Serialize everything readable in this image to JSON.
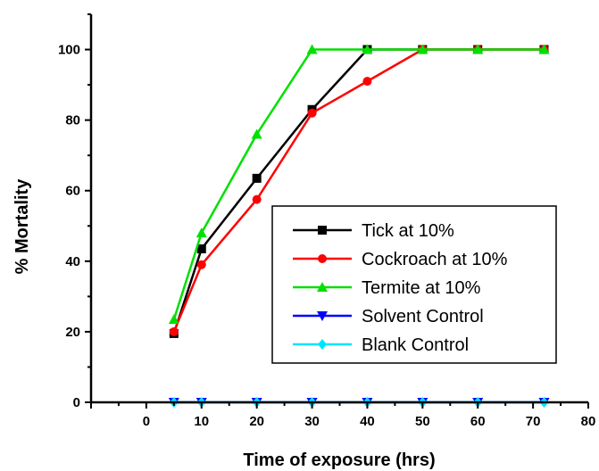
{
  "chart_data": {
    "type": "line",
    "title": "",
    "xlabel": "Time of exposure (hrs)",
    "ylabel": "% Mortality",
    "xlim": [
      -10,
      80
    ],
    "ylim": [
      0,
      110
    ],
    "xticks": [
      0,
      10,
      20,
      30,
      40,
      50,
      60,
      70,
      80
    ],
    "yticks": [
      0,
      20,
      40,
      60,
      80,
      100
    ],
    "grid": false,
    "legend_position": "center-right",
    "series": [
      {
        "name": "Tick at 10%",
        "color": "#000000",
        "marker": "square",
        "x": [
          5,
          10,
          20,
          30,
          40,
          50,
          60,
          72
        ],
        "y": [
          19.5,
          43.5,
          63.5,
          83,
          100,
          100,
          100,
          100
        ]
      },
      {
        "name": "Cockroach at 10%",
        "color": "#ff0000",
        "marker": "circle",
        "x": [
          5,
          10,
          20,
          30,
          40,
          50,
          60,
          72
        ],
        "y": [
          20,
          39,
          57.5,
          82,
          91,
          100,
          100,
          100
        ]
      },
      {
        "name": "Termite at 10%",
        "color": "#00e000",
        "marker": "triangle-up",
        "x": [
          5,
          10,
          20,
          30,
          40,
          50,
          60,
          72
        ],
        "y": [
          23.5,
          48,
          76,
          100,
          100,
          100,
          100,
          100
        ]
      },
      {
        "name": "Solvent Control",
        "color": "#0000ff",
        "marker": "triangle-down",
        "x": [
          5,
          10,
          20,
          30,
          40,
          50,
          60,
          72
        ],
        "y": [
          0,
          0,
          0,
          0,
          0,
          0,
          0,
          0
        ]
      },
      {
        "name": "Blank Control",
        "color": "#00e5ff",
        "marker": "diamond",
        "x": [
          5,
          10,
          20,
          30,
          40,
          50,
          60,
          72
        ],
        "y": [
          0,
          0,
          0,
          0,
          0,
          0,
          0,
          0
        ]
      }
    ]
  }
}
